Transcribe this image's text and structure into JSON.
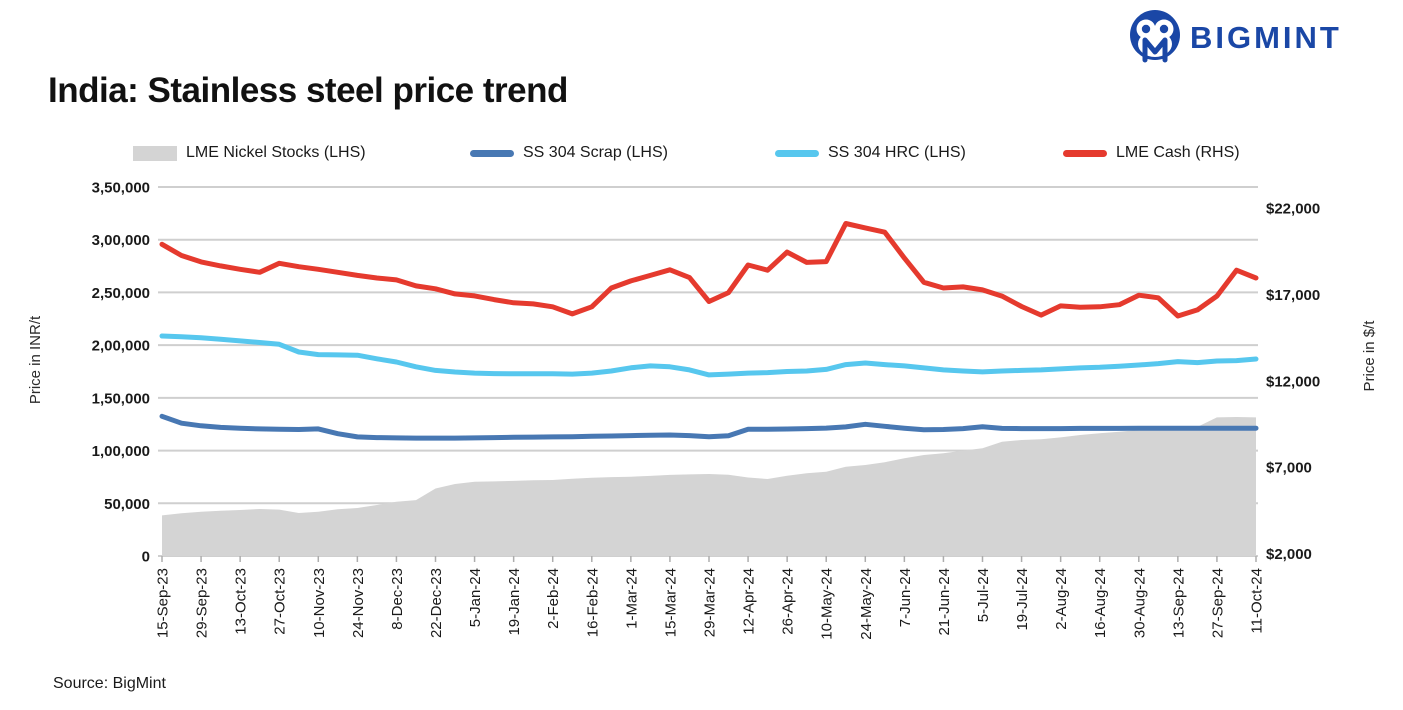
{
  "header": {
    "logo_text": "BIGMINT",
    "logo_color": "#1a47a6"
  },
  "title": "India: Stainless steel price trend",
  "source": "Source: BigMint",
  "legend": [
    {
      "label": "LME Nickel Stocks (LHS)",
      "color": "#d4d4d4",
      "type": "area"
    },
    {
      "label": "SS 304 Scrap (LHS)",
      "color": "#4878b3",
      "type": "line"
    },
    {
      "label": "SS 304 HRC (LHS)",
      "color": "#57c7ee",
      "type": "line"
    },
    {
      "label": "LME Cash (RHS)",
      "color": "#e53a2e",
      "type": "line"
    }
  ],
  "chart_data": {
    "type": "line",
    "title": "India: Stainless steel price trend",
    "grid": true,
    "legend_position": "top",
    "x_labels": [
      "15-Sep-23",
      "29-Sep-23",
      "13-Oct-23",
      "27-Oct-23",
      "10-Nov-23",
      "24-Nov-23",
      "8-Dec-23",
      "22-Dec-23",
      "5-Jan-24",
      "19-Jan-24",
      "2-Feb-24",
      "16-Feb-24",
      "1-Mar-24",
      "15-Mar-24",
      "29-Mar-24",
      "12-Apr-24",
      "26-Apr-24",
      "10-May-24",
      "24-May-24",
      "7-Jun-24",
      "21-Jun-24",
      "5-Jul-24",
      "19-Jul-24",
      "2-Aug-24",
      "16-Aug-24",
      "30-Aug-24",
      "13-Sep-24",
      "27-Sep-24",
      "11-Oct-24"
    ],
    "x_label_interval_points": 2,
    "left_axis": {
      "title": "Price in INR/t",
      "range": [
        0,
        350000
      ],
      "tick_values": [
        0,
        50000,
        100000,
        150000,
        200000,
        250000,
        300000,
        350000
      ],
      "tick_labels": [
        "0",
        "50,000",
        "1,00,000",
        "1,50,000",
        "2,00,000",
        "2,50,000",
        "3,00,000",
        "3,50,000"
      ]
    },
    "right_axis": {
      "title": "Price in $/t",
      "range": [
        2000,
        22000
      ],
      "tick_values": [
        2000,
        7000,
        12000,
        17000,
        22000
      ],
      "tick_labels": [
        "$2,000",
        "$7,000",
        "$12,000",
        "$17,000",
        "$22,000"
      ]
    },
    "series": [
      {
        "name": "LME Nickel Stocks (LHS)",
        "axis": "left",
        "style": "area",
        "color": "#d4d4d4",
        "values": [
          38500,
          40500,
          42000,
          43000,
          43600,
          44600,
          44000,
          40800,
          42000,
          44300,
          45500,
          48400,
          51500,
          53000,
          64000,
          68300,
          70500,
          70800,
          71200,
          71800,
          72100,
          73200,
          74300,
          74800,
          75200,
          76000,
          76900,
          77400,
          77800,
          77000,
          74500,
          73000,
          76200,
          78500,
          80000,
          84700,
          86300,
          89000,
          92700,
          95800,
          97500,
          100000,
          102200,
          108400,
          110000,
          110700,
          112500,
          114800,
          116500,
          117900,
          119500,
          120200,
          121500,
          122500,
          131500,
          131800,
          131500
        ]
      },
      {
        "name": "SS 304 Scrap (LHS)",
        "axis": "left",
        "style": "line",
        "color": "#4878b3",
        "values": [
          132500,
          126000,
          123500,
          122000,
          121200,
          120600,
          120200,
          120000,
          120600,
          116000,
          113000,
          112300,
          112000,
          111800,
          111800,
          111800,
          112000,
          112300,
          112600,
          112800,
          113000,
          113200,
          113500,
          113800,
          114200,
          114500,
          114800,
          114200,
          113200,
          114000,
          120200,
          120300,
          120500,
          120800,
          121300,
          122500,
          124900,
          123000,
          121200,
          119700,
          120000,
          120800,
          122600,
          121000,
          120800,
          120800,
          120800,
          121000,
          121000,
          121000,
          121200,
          121200,
          121200,
          121200,
          121200,
          121200,
          121200
        ]
      },
      {
        "name": "SS 304 HRC (LHS)",
        "axis": "left",
        "style": "line",
        "color": "#57c7ee",
        "values": [
          208700,
          208000,
          207000,
          205500,
          204000,
          202500,
          200800,
          193500,
          191000,
          190700,
          190500,
          187000,
          184000,
          179500,
          176000,
          174500,
          173500,
          173000,
          172800,
          172800,
          172800,
          172500,
          173500,
          175500,
          178500,
          180300,
          179500,
          176500,
          171800,
          172500,
          173500,
          174000,
          175000,
          175500,
          177000,
          181500,
          183100,
          181500,
          180300,
          178400,
          176500,
          175500,
          174600,
          175500,
          176000,
          176500,
          177500,
          178400,
          179000,
          180000,
          181200,
          182500,
          184400,
          183400,
          185000,
          185300,
          186900
        ]
      },
      {
        "name": "LME Cash (RHS)",
        "axis": "right",
        "style": "line",
        "color": "#e53a2e",
        "values": [
          19900,
          19250,
          18880,
          18650,
          18450,
          18280,
          18800,
          18600,
          18450,
          18280,
          18100,
          17950,
          17840,
          17490,
          17320,
          17030,
          16910,
          16700,
          16510,
          16450,
          16280,
          15870,
          16280,
          17370,
          17780,
          18100,
          18420,
          17970,
          16590,
          17100,
          18700,
          18400,
          19450,
          18850,
          18900,
          21100,
          20850,
          20600,
          19100,
          17700,
          17370,
          17430,
          17260,
          16900,
          16300,
          15800,
          16330,
          16250,
          16280,
          16400,
          16950,
          16800,
          15750,
          16100,
          16900,
          18400,
          17950
        ]
      }
    ]
  }
}
